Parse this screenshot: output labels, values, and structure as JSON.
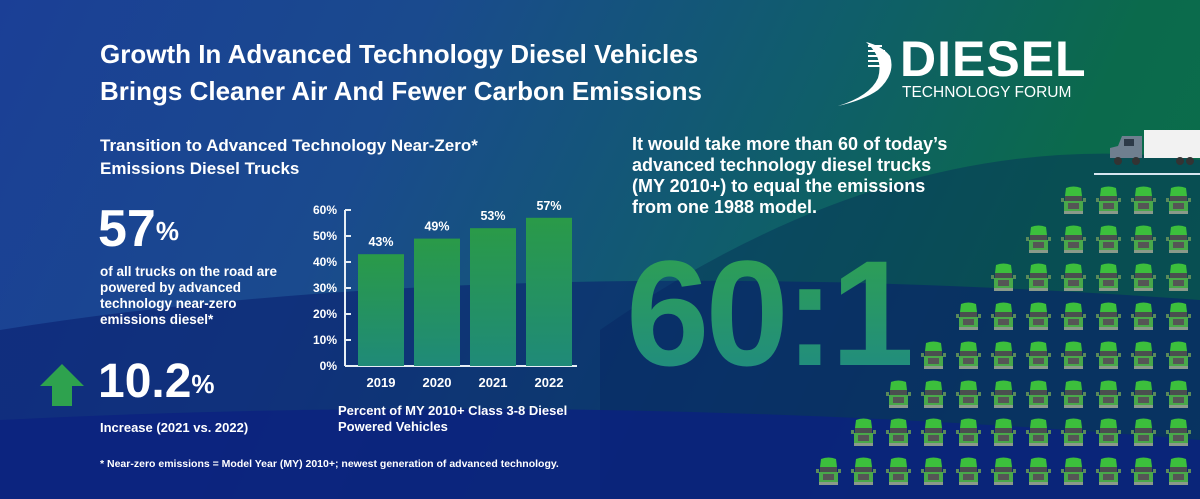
{
  "title_lines": [
    "Growth In Advanced Technology Diesel Vehicles",
    "Brings Cleaner Air And Fewer Carbon Emissions"
  ],
  "logo": {
    "word": "DIESEL",
    "tagline": "TECHNOLOGY FORUM"
  },
  "left": {
    "subtitle_lines": [
      "Transition to Advanced Technology Near-Zero*",
      "Emissions Diesel Trucks"
    ],
    "stat_value": "57",
    "stat_unit": "%",
    "stat_desc": "of all trucks on the road are powered by advanced technology near-zero emissions diesel*",
    "increase_value": "10.2",
    "increase_unit": "%",
    "increase_label": "Increase (2021 vs. 2022)",
    "footnote": "* Near-zero emissions = Model Year (MY) 2010+; newest generation of advanced technology."
  },
  "right": {
    "text_lines": [
      "It would take more than 60 of today’s",
      "advanced technology diesel trucks",
      "(MY 2010+) to equal the emissions",
      "from one 1988 model."
    ],
    "ratio": "60:1",
    "truck_rows": [
      4,
      5,
      6,
      7,
      8,
      9,
      10,
      11
    ]
  },
  "colors": {
    "bar": "#2a9a48",
    "bar_bottom": "#1f8a78",
    "arrow": "#2ea24e",
    "truck": "#3cbf3c"
  },
  "chart_data": {
    "type": "bar",
    "categories": [
      "2019",
      "2020",
      "2021",
      "2022"
    ],
    "values": [
      43,
      49,
      53,
      57
    ],
    "data_labels": [
      "43%",
      "49%",
      "53%",
      "57%"
    ],
    "yticks": [
      "0%",
      "10%",
      "20%",
      "30%",
      "40%",
      "50%",
      "60%"
    ],
    "ylim": [
      0,
      60
    ],
    "title_lines": [
      "Percent of MY 2010+ Class 3-8 Diesel",
      "Powered Vehicles"
    ],
    "grid": false
  }
}
